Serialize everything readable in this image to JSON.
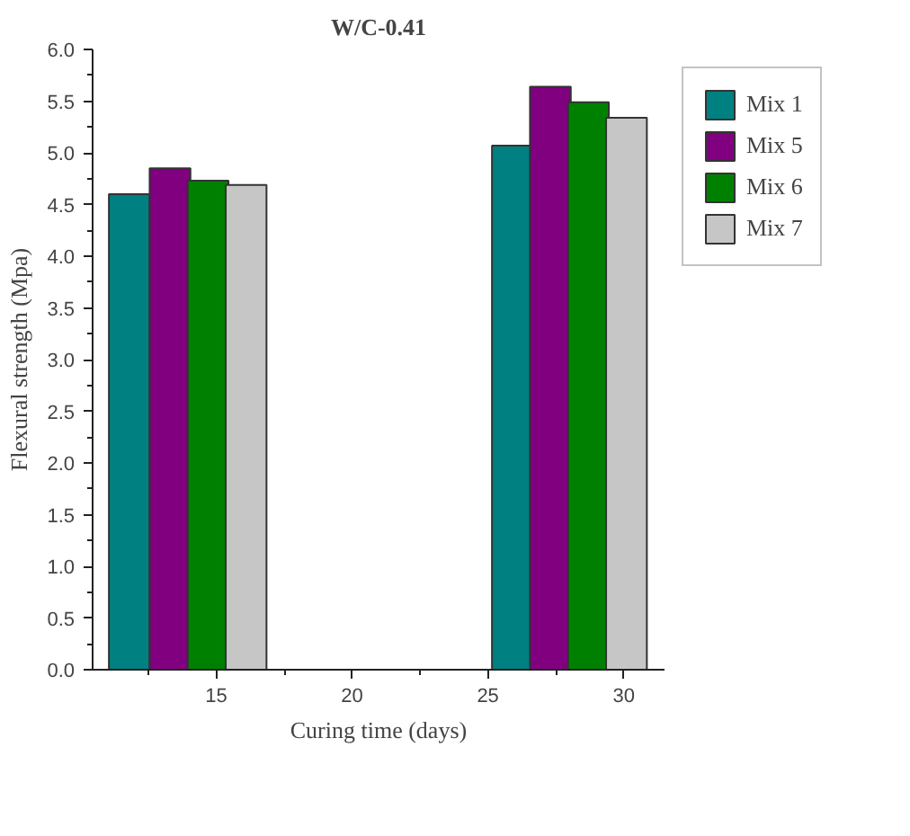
{
  "chart_data": {
    "type": "bar",
    "title": "W/C-0.41",
    "xlabel": "Curing time (days)",
    "ylabel": "Flexural strength (Mpa)",
    "xlim": [
      10.45,
      31.5
    ],
    "xticks": [
      15,
      20,
      25,
      30
    ],
    "ylim": [
      0,
      6.0
    ],
    "yticks": [
      {
        "value": 0,
        "label": "0.0"
      },
      0.5,
      {
        "value": 1,
        "label": "1.0"
      },
      1.5,
      {
        "value": 2,
        "label": "2.0"
      },
      2.5,
      {
        "value": 3,
        "label": "3.0"
      },
      3.5,
      {
        "value": 4,
        "label": "4.0"
      },
      4.5,
      {
        "value": 5,
        "label": "5.0"
      },
      5.5,
      {
        "value": 6,
        "label": "6.0"
      }
    ],
    "grid": false,
    "legend": "top right",
    "series": [
      {
        "name": "Mix 1",
        "color": "#008080",
        "x": [
          11.8,
          25.9
        ],
        "values": [
          4.6,
          5.07
        ]
      },
      {
        "name": "Mix 5",
        "color": "#800080",
        "x": [
          13.3,
          27.3
        ],
        "values": [
          4.85,
          5.64
        ]
      },
      {
        "name": "Mix 6",
        "color": "#008000",
        "x": [
          14.7,
          28.7
        ],
        "values": [
          4.73,
          5.49
        ]
      },
      {
        "name": "Mix 7",
        "color": "#c6c6c6",
        "x": [
          16.1,
          30.1
        ],
        "values": [
          4.69,
          5.34
        ]
      }
    ]
  }
}
